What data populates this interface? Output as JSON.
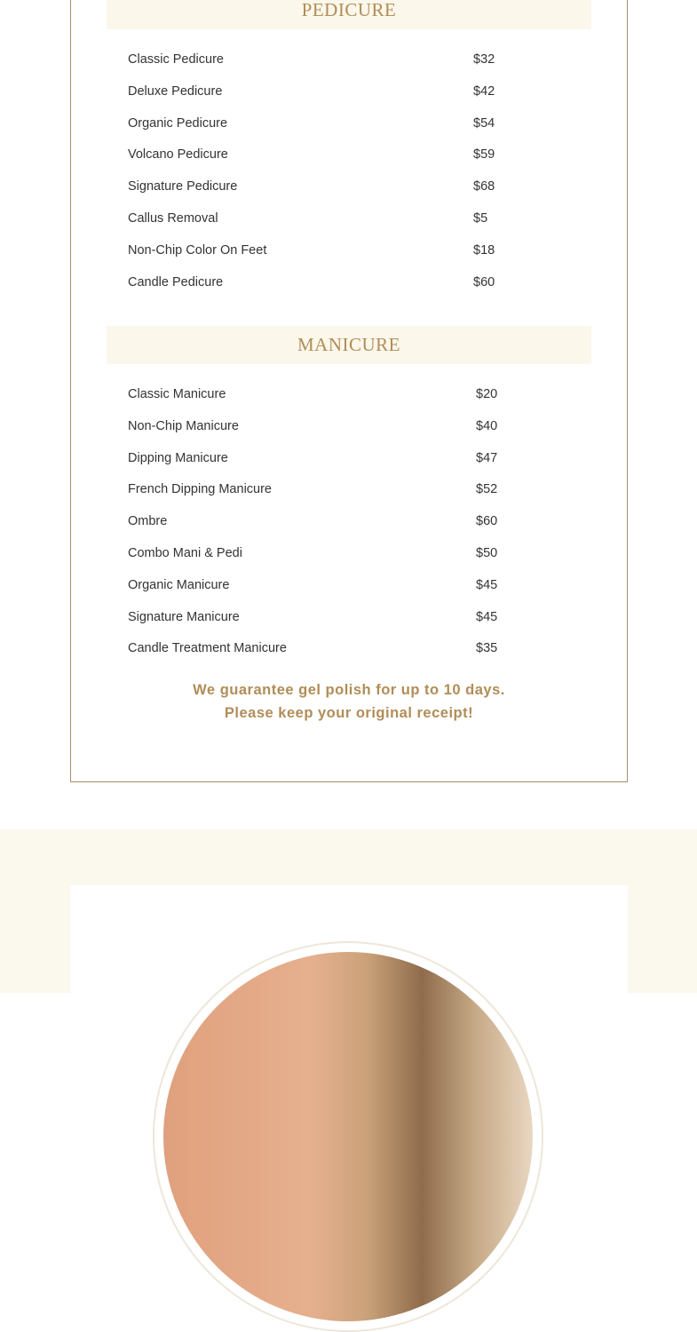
{
  "pedicure": {
    "title": "PEDICURE",
    "items": [
      {
        "name": "Classic Pedicure",
        "price": "$32"
      },
      {
        "name": "Deluxe Pedicure",
        "price": "$42"
      },
      {
        "name": "Organic Pedicure",
        "price": "$54"
      },
      {
        "name": "Volcano Pedicure",
        "price": "$59"
      },
      {
        "name": "Signature Pedicure",
        "price": "$68"
      },
      {
        "name": "Callus Removal",
        "price": "$5"
      },
      {
        "name": "Non-Chip Color On Feet",
        "price": "$18"
      },
      {
        "name": "Candle Pedicure",
        "price": "$60"
      }
    ]
  },
  "manicure": {
    "title": "MANICURE",
    "items": [
      {
        "name": "Classic Manicure",
        "price": "$20"
      },
      {
        "name": "Non-Chip Manicure",
        "price": "$40"
      },
      {
        "name": "Dipping Manicure",
        "price": "$47"
      },
      {
        "name": "French Dipping Manicure",
        "price": "$52"
      },
      {
        "name": "Ombre",
        "price": "$60"
      },
      {
        "name": "Combo Mani & Pedi",
        "price": "$50"
      },
      {
        "name": "Organic Manicure",
        "price": "$45"
      },
      {
        "name": "Signature Manicure",
        "price": "$45"
      },
      {
        "name": "Candle Treatment Manicure",
        "price": "$35"
      }
    ]
  },
  "note": {
    "line1": "We guarantee gel polish for up to 10 days.",
    "line2": "Please keep your original receipt!"
  },
  "colors": {
    "accent": "#b08d57",
    "header_bg": "#fbf7ea",
    "border": "#a98d6a",
    "band_bg": "#fbf8ee"
  }
}
